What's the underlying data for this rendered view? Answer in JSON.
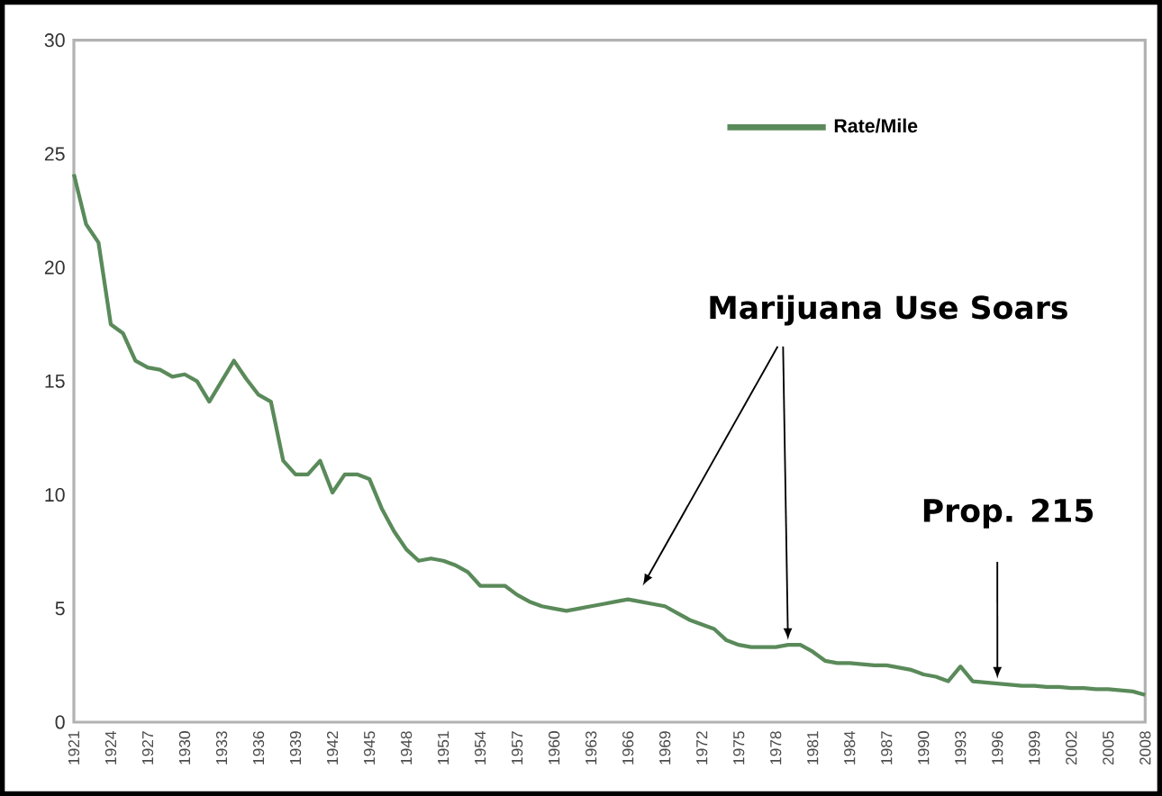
{
  "chart_data": {
    "type": "line",
    "x": [
      1921,
      1922,
      1923,
      1924,
      1925,
      1926,
      1927,
      1928,
      1929,
      1930,
      1931,
      1932,
      1933,
      1934,
      1935,
      1936,
      1937,
      1938,
      1939,
      1940,
      1941,
      1942,
      1943,
      1944,
      1945,
      1946,
      1947,
      1948,
      1949,
      1950,
      1951,
      1952,
      1953,
      1954,
      1955,
      1956,
      1957,
      1958,
      1959,
      1960,
      1961,
      1962,
      1963,
      1964,
      1965,
      1966,
      1967,
      1968,
      1969,
      1970,
      1971,
      1972,
      1973,
      1974,
      1975,
      1976,
      1977,
      1978,
      1979,
      1980,
      1981,
      1982,
      1983,
      1984,
      1985,
      1986,
      1987,
      1988,
      1989,
      1990,
      1991,
      1992,
      1993,
      1994,
      1995,
      1996,
      1997,
      1998,
      1999,
      2000,
      2001,
      2002,
      2003,
      2004,
      2005,
      2006,
      2007,
      2008
    ],
    "series": [
      {
        "name": "Rate/Mile",
        "color": "#5a8a5a",
        "values": [
          24.1,
          21.9,
          21.1,
          17.5,
          17.1,
          15.9,
          15.6,
          15.5,
          15.2,
          15.3,
          15.0,
          14.1,
          15.0,
          15.9,
          15.1,
          14.4,
          14.1,
          11.5,
          10.9,
          10.9,
          11.5,
          10.1,
          10.9,
          10.9,
          10.7,
          9.4,
          8.4,
          7.6,
          7.1,
          7.2,
          7.1,
          6.9,
          6.6,
          6.0,
          6.0,
          6.0,
          5.6,
          5.3,
          5.1,
          5.0,
          4.9,
          5.0,
          5.1,
          5.2,
          5.3,
          5.4,
          5.3,
          5.2,
          5.1,
          4.8,
          4.5,
          4.3,
          4.1,
          3.6,
          3.4,
          3.3,
          3.3,
          3.3,
          3.4,
          3.4,
          3.1,
          2.7,
          2.6,
          2.6,
          2.55,
          2.5,
          2.5,
          2.4,
          2.3,
          2.1,
          2.0,
          1.8,
          2.45,
          1.8,
          1.75,
          1.7,
          1.65,
          1.6,
          1.6,
          1.55,
          1.55,
          1.5,
          1.5,
          1.45,
          1.45,
          1.4,
          1.35,
          1.2
        ]
      }
    ],
    "xlim": [
      1921,
      2008
    ],
    "xticks": [
      1921,
      1924,
      1927,
      1930,
      1933,
      1936,
      1939,
      1942,
      1945,
      1948,
      1951,
      1954,
      1957,
      1960,
      1963,
      1966,
      1969,
      1972,
      1975,
      1978,
      1981,
      1984,
      1987,
      1990,
      1993,
      1996,
      1999,
      2002,
      2005,
      2008
    ],
    "ylim": [
      0,
      30
    ],
    "yticks": [
      0,
      5,
      10,
      15,
      20,
      25,
      30
    ],
    "grid": false,
    "legend": "top right",
    "marker": "none",
    "line_style": "solid",
    "annotations": [
      {
        "text": "Marijuana Use Soars",
        "x": 1979,
        "y": 3.4
      },
      {
        "text": "Prop. 215",
        "x": 1996,
        "y": 1.7
      }
    ]
  }
}
